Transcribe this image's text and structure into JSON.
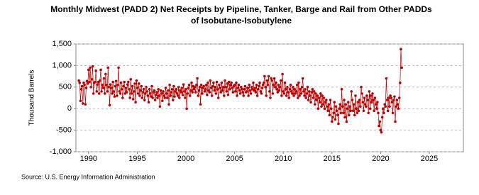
{
  "chart_data": {
    "type": "line",
    "title": "Monthly Midwest (PADD 2) Net Receipts by Pipeline, Tanker, Barge and Rail from Other PADDs of Isobutane-Isobutylene",
    "y_label": "Thousand Barrels",
    "source": "Source: U.S. Energy Information Administration",
    "xlim": [
      1988.7,
      2028.5
    ],
    "xticks": [
      1990,
      1995,
      2000,
      2005,
      2010,
      2015,
      2020,
      2025
    ],
    "ylim": [
      -1000,
      1500
    ],
    "yticks": [
      {
        "value": -1000,
        "label": "-1,000"
      },
      -500,
      0,
      500,
      {
        "value": 1000,
        "label": "1,000"
      },
      {
        "value": 1500,
        "label": "1,500"
      }
    ],
    "grid": true,
    "series": [
      {
        "name": "Net Receipts",
        "color": "#c00000",
        "x": [
          1989.0,
          1989.08,
          1989.17,
          1989.25,
          1989.33,
          1989.42,
          1989.5,
          1989.58,
          1989.67,
          1989.75,
          1989.83,
          1989.92,
          1990.0,
          1990.08,
          1990.17,
          1990.25,
          1990.33,
          1990.42,
          1990.5,
          1990.58,
          1990.67,
          1990.75,
          1990.83,
          1990.92,
          1991.0,
          1991.08,
          1991.17,
          1991.25,
          1991.33,
          1991.42,
          1991.5,
          1991.58,
          1991.67,
          1991.75,
          1991.83,
          1991.92,
          1992.0,
          1992.08,
          1992.17,
          1992.25,
          1992.33,
          1992.42,
          1992.5,
          1992.58,
          1992.67,
          1992.75,
          1992.83,
          1992.92,
          1993.0,
          1993.08,
          1993.17,
          1993.25,
          1993.33,
          1993.42,
          1993.5,
          1993.58,
          1993.67,
          1993.75,
          1993.83,
          1993.92,
          1994.0,
          1994.08,
          1994.17,
          1994.25,
          1994.33,
          1994.42,
          1994.5,
          1994.58,
          1994.67,
          1994.75,
          1994.83,
          1994.92,
          1995.0,
          1995.08,
          1995.17,
          1995.25,
          1995.33,
          1995.42,
          1995.5,
          1995.58,
          1995.67,
          1995.75,
          1995.83,
          1995.92,
          1996.0,
          1996.08,
          1996.17,
          1996.25,
          1996.33,
          1996.42,
          1996.5,
          1996.58,
          1996.67,
          1996.75,
          1996.83,
          1996.92,
          1997.0,
          1997.08,
          1997.17,
          1997.25,
          1997.33,
          1997.42,
          1997.5,
          1997.58,
          1997.67,
          1997.75,
          1997.83,
          1997.92,
          1998.0,
          1998.08,
          1998.17,
          1998.25,
          1998.33,
          1998.42,
          1998.5,
          1998.58,
          1998.67,
          1998.75,
          1998.83,
          1998.92,
          1999.0,
          1999.08,
          1999.17,
          1999.25,
          1999.33,
          1999.42,
          1999.5,
          1999.58,
          1999.67,
          1999.75,
          1999.83,
          1999.92,
          2000.0,
          2000.08,
          2000.17,
          2000.25,
          2000.33,
          2000.42,
          2000.5,
          2000.58,
          2000.67,
          2000.75,
          2000.83,
          2000.92,
          2001.0,
          2001.08,
          2001.17,
          2001.25,
          2001.33,
          2001.42,
          2001.5,
          2001.58,
          2001.67,
          2001.75,
          2001.83,
          2001.92,
          2002.0,
          2002.08,
          2002.17,
          2002.25,
          2002.33,
          2002.42,
          2002.5,
          2002.58,
          2002.67,
          2002.75,
          2002.83,
          2002.92,
          2003.0,
          2003.08,
          2003.17,
          2003.25,
          2003.33,
          2003.42,
          2003.5,
          2003.58,
          2003.67,
          2003.75,
          2003.83,
          2003.92,
          2004.0,
          2004.08,
          2004.17,
          2004.25,
          2004.33,
          2004.42,
          2004.5,
          2004.58,
          2004.67,
          2004.75,
          2004.83,
          2004.92,
          2005.0,
          2005.08,
          2005.17,
          2005.25,
          2005.33,
          2005.42,
          2005.5,
          2005.58,
          2005.67,
          2005.75,
          2005.83,
          2005.92,
          2006.0,
          2006.08,
          2006.17,
          2006.25,
          2006.33,
          2006.42,
          2006.5,
          2006.58,
          2006.67,
          2006.75,
          2006.83,
          2006.92,
          2007.0,
          2007.08,
          2007.17,
          2007.25,
          2007.33,
          2007.42,
          2007.5,
          2007.58,
          2007.67,
          2007.75,
          2007.83,
          2007.92,
          2008.0,
          2008.08,
          2008.17,
          2008.25,
          2008.33,
          2008.42,
          2008.5,
          2008.58,
          2008.67,
          2008.75,
          2008.83,
          2008.92,
          2009.0,
          2009.08,
          2009.17,
          2009.25,
          2009.33,
          2009.42,
          2009.5,
          2009.58,
          2009.67,
          2009.75,
          2009.83,
          2009.92,
          2010.0,
          2010.08,
          2010.17,
          2010.25,
          2010.33,
          2010.42,
          2010.5,
          2010.58,
          2010.67,
          2010.75,
          2010.83,
          2010.92,
          2011.0,
          2011.08,
          2011.17,
          2011.25,
          2011.33,
          2011.42,
          2011.5,
          2011.58,
          2011.67,
          2011.75,
          2011.83,
          2011.92,
          2012.0,
          2012.08,
          2012.17,
          2012.25,
          2012.33,
          2012.42,
          2012.5,
          2012.58,
          2012.67,
          2012.75,
          2012.83,
          2012.92,
          2013.0,
          2013.08,
          2013.17,
          2013.25,
          2013.33,
          2013.42,
          2013.5,
          2013.58,
          2013.67,
          2013.75,
          2013.83,
          2013.92,
          2014.0,
          2014.08,
          2014.17,
          2014.25,
          2014.33,
          2014.42,
          2014.5,
          2014.58,
          2014.67,
          2014.75,
          2014.83,
          2014.92,
          2015.0,
          2015.08,
          2015.17,
          2015.25,
          2015.33,
          2015.42,
          2015.5,
          2015.58,
          2015.67,
          2015.75,
          2015.83,
          2015.92,
          2016.0,
          2016.08,
          2016.17,
          2016.25,
          2016.33,
          2016.42,
          2016.5,
          2016.58,
          2016.67,
          2016.75,
          2016.83,
          2016.92,
          2017.0,
          2017.08,
          2017.17,
          2017.25,
          2017.33,
          2017.42,
          2017.5,
          2017.58,
          2017.67,
          2017.75,
          2017.83,
          2017.92,
          2018.0,
          2018.08,
          2018.17,
          2018.25,
          2018.33,
          2018.42,
          2018.5,
          2018.58,
          2018.67,
          2018.75,
          2018.83,
          2018.92,
          2019.0,
          2019.08,
          2019.17,
          2019.25,
          2019.33,
          2019.42,
          2019.5,
          2019.58,
          2019.67,
          2019.75,
          2019.83,
          2019.92,
          2020.0,
          2020.08,
          2020.17,
          2020.25,
          2020.33,
          2020.42,
          2020.5,
          2020.58,
          2020.67,
          2020.75,
          2020.83,
          2020.92,
          2021.0,
          2021.08,
          2021.17,
          2021.25,
          2021.33,
          2021.42,
          2021.5,
          2021.58,
          2021.67,
          2021.75,
          2021.83,
          2021.92,
          2022.0,
          2022.08,
          2022.17
        ],
        "values": [
          650,
          600,
          180,
          450,
          520,
          120,
          600,
          550,
          100,
          480,
          640,
          580,
          900,
          620,
          950,
          500,
          680,
          980,
          350,
          600,
          620,
          880,
          400,
          560,
          620,
          350,
          650,
          900,
          400,
          550,
          480,
          700,
          350,
          800,
          550,
          400,
          950,
          500,
          80,
          560,
          480,
          350,
          620,
          400,
          280,
          520,
          640,
          300,
          550,
          950,
          400,
          350,
          600,
          450,
          250,
          520,
          620,
          350,
          480,
          380,
          560,
          620,
          450,
          250,
          680,
          350,
          520,
          220,
          400,
          580,
          150,
          650,
          480,
          350,
          580,
          300,
          420,
          520,
          250,
          380,
          450,
          200,
          350,
          500,
          400,
          300,
          150,
          450,
          350,
          280,
          520,
          250,
          380,
          420,
          200,
          320,
          380,
          250,
          450,
          300,
          50,
          420,
          350,
          180,
          400,
          300,
          250,
          480,
          350,
          250,
          420,
          100,
          550,
          300,
          380,
          450,
          200,
          520,
          280,
          400,
          450,
          350,
          300,
          500,
          250,
          420,
          380,
          480,
          320,
          560,
          400,
          250,
          450,
          0,
          350,
          480,
          550,
          300,
          420,
          600,
          380,
          520,
          450,
          500,
          380,
          550,
          700,
          300,
          420,
          500,
          100,
          550,
          350,
          480,
          520,
          400,
          450,
          550,
          320,
          600,
          420,
          380,
          650,
          480,
          300,
          520,
          600,
          420,
          500,
          350,
          620,
          450,
          250,
          550,
          480,
          380,
          600,
          420,
          500,
          300,
          650,
          500,
          400,
          580,
          320,
          620,
          450,
          550,
          600,
          480,
          380,
          520,
          550,
          400,
          600,
          300,
          480,
          550,
          420,
          350,
          500,
          450,
          380,
          300,
          450,
          520,
          380,
          400,
          480,
          300,
          550,
          420,
          350,
          500,
          450,
          600,
          420,
          480,
          380,
          550,
          300,
          450,
          520,
          600,
          400,
          350,
          480,
          550,
          600,
          750,
          500,
          300,
          650,
          550,
          750,
          400,
          250,
          700,
          650,
          350,
          550,
          700,
          500,
          600,
          450,
          380,
          550,
          420,
          500,
          650,
          300,
          800,
          400,
          350,
          600,
          450,
          300,
          500,
          380,
          250,
          450,
          550,
          400,
          350,
          500,
          300,
          450,
          350,
          400,
          550,
          250,
          600,
          300,
          450,
          350,
          500,
          700,
          400,
          300,
          450,
          250,
          350,
          500,
          200,
          400,
          300,
          150,
          380,
          450,
          250,
          400,
          100,
          350,
          200,
          300,
          0,
          250,
          150,
          350,
          50,
          300,
          100,
          250,
          0,
          150,
          200,
          50,
          -50,
          100,
          -150,
          200,
          0,
          -300,
          -200,
          -100,
          150,
          -250,
          50,
          -50,
          -150,
          -350,
          0,
          100,
          -100,
          450,
          50,
          -100,
          200,
          -200,
          100,
          -300,
          0,
          150,
          -150,
          50,
          -50,
          400,
          200,
          -50,
          100,
          -150,
          300,
          0,
          -100,
          150,
          -50,
          200,
          50,
          500,
          350,
          150,
          -50,
          250,
          100,
          50,
          300,
          200,
          -100,
          400,
          0,
          300,
          150,
          350,
          200,
          -50,
          250,
          100,
          0,
          150,
          -100,
          -400,
          -300,
          -500,
          -550,
          -200,
          0,
          -100,
          100,
          50,
          700,
          200,
          -50,
          250,
          50,
          300,
          250,
          150,
          -100,
          200,
          280,
          -300,
          50,
          200,
          100,
          0,
          250,
          600,
          1380,
          950
        ]
      }
    ]
  }
}
